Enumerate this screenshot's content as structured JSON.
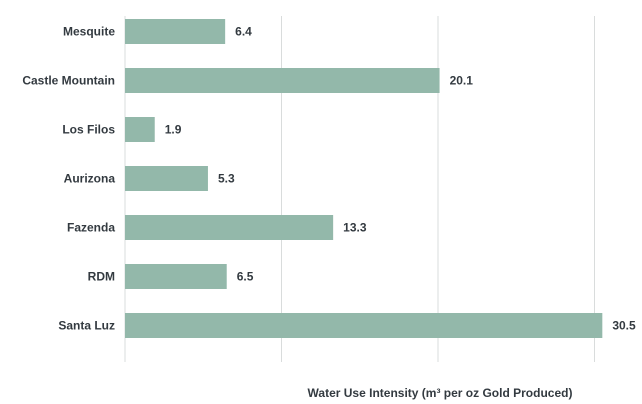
{
  "chart_data": {
    "type": "bar",
    "orientation": "horizontal",
    "categories": [
      "Mesquite",
      "Castle Mountain",
      "Los Filos",
      "Aurizona",
      "Fazenda",
      "RDM",
      "Santa Luz"
    ],
    "values": [
      6.4,
      20.1,
      1.9,
      5.3,
      13.3,
      6.5,
      30.5
    ],
    "value_labels": [
      "6.4",
      "20.1",
      "1.9",
      "5.3",
      "13.3",
      "6.5",
      "30.5"
    ],
    "title": "",
    "xlabel": "Water Use Intensity (m³ per oz Gold Produced)",
    "ylabel": "",
    "xlim": [
      0,
      31
    ],
    "gridlines_x": [
      0,
      10,
      20,
      30
    ],
    "grid": true,
    "legend": false,
    "colors": {
      "bar": "#93b8aa",
      "grid": "#d9dcdc",
      "text": "#333a40"
    }
  }
}
